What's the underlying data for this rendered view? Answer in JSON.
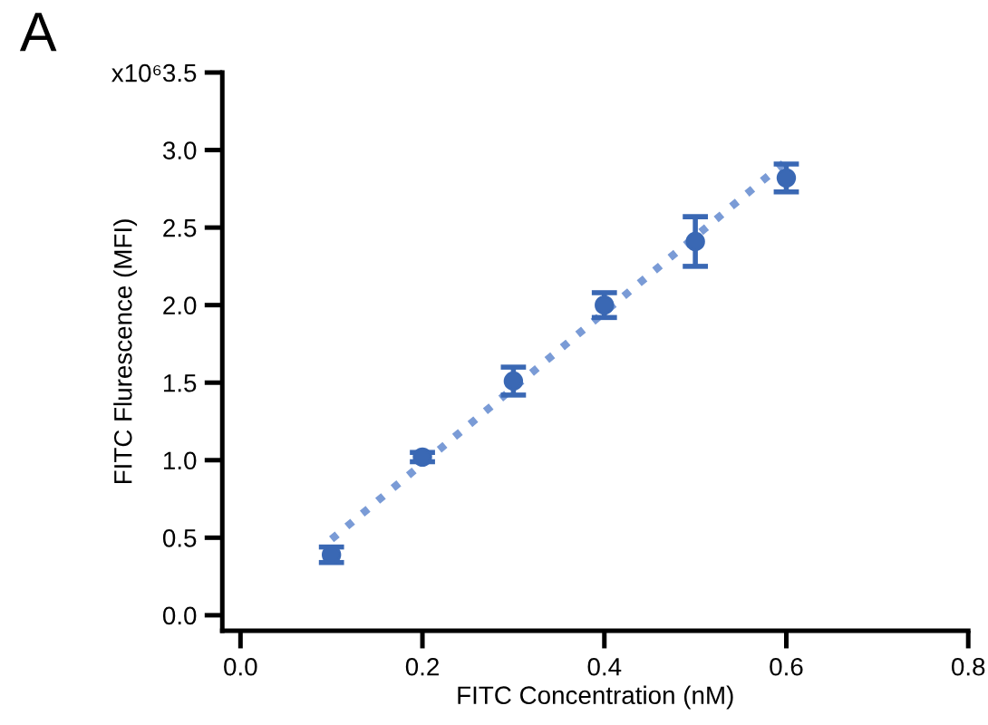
{
  "chart_data": {
    "type": "scatter",
    "xlabel": "FITC Concentration (nM)",
    "ylabel": "FITC Flurescence (MFI)",
    "annotations": [
      "A",
      "x10⁶"
    ],
    "series": [
      {
        "color": "#3a68b4",
        "marker": "circle",
        "x": [
          0.1,
          0.2,
          0.3,
          0.4,
          0.5,
          0.6
        ],
        "values": [
          0.39,
          1.02,
          1.51,
          2.0,
          2.41,
          2.82
        ],
        "errors": [
          0.05,
          0.03,
          0.09,
          0.08,
          0.16,
          0.09
        ]
      },
      {
        "type": "line",
        "color": "#7a9bd6",
        "line_style": "dotted",
        "marker": "none",
        "x": [
          0.1,
          0.6
        ],
        "values": [
          0.49,
          2.93
        ]
      }
    ],
    "xlim": [
      -0.02,
      0.8
    ],
    "xticks": [
      {
        "value": 0,
        "label": "0.0"
      },
      0.2,
      0.4,
      0.6,
      0.8
    ],
    "ylim": [
      -0.1,
      3.5
    ],
    "yticks": [
      {
        "value": 0,
        "label": "0.0"
      },
      0.5,
      {
        "value": 1,
        "label": "1.0"
      },
      1.5,
      {
        "value": 2,
        "label": "2.0"
      },
      2.5,
      {
        "value": 3,
        "label": "3.0"
      },
      3.5
    ],
    "grid": false,
    "legend": false
  }
}
